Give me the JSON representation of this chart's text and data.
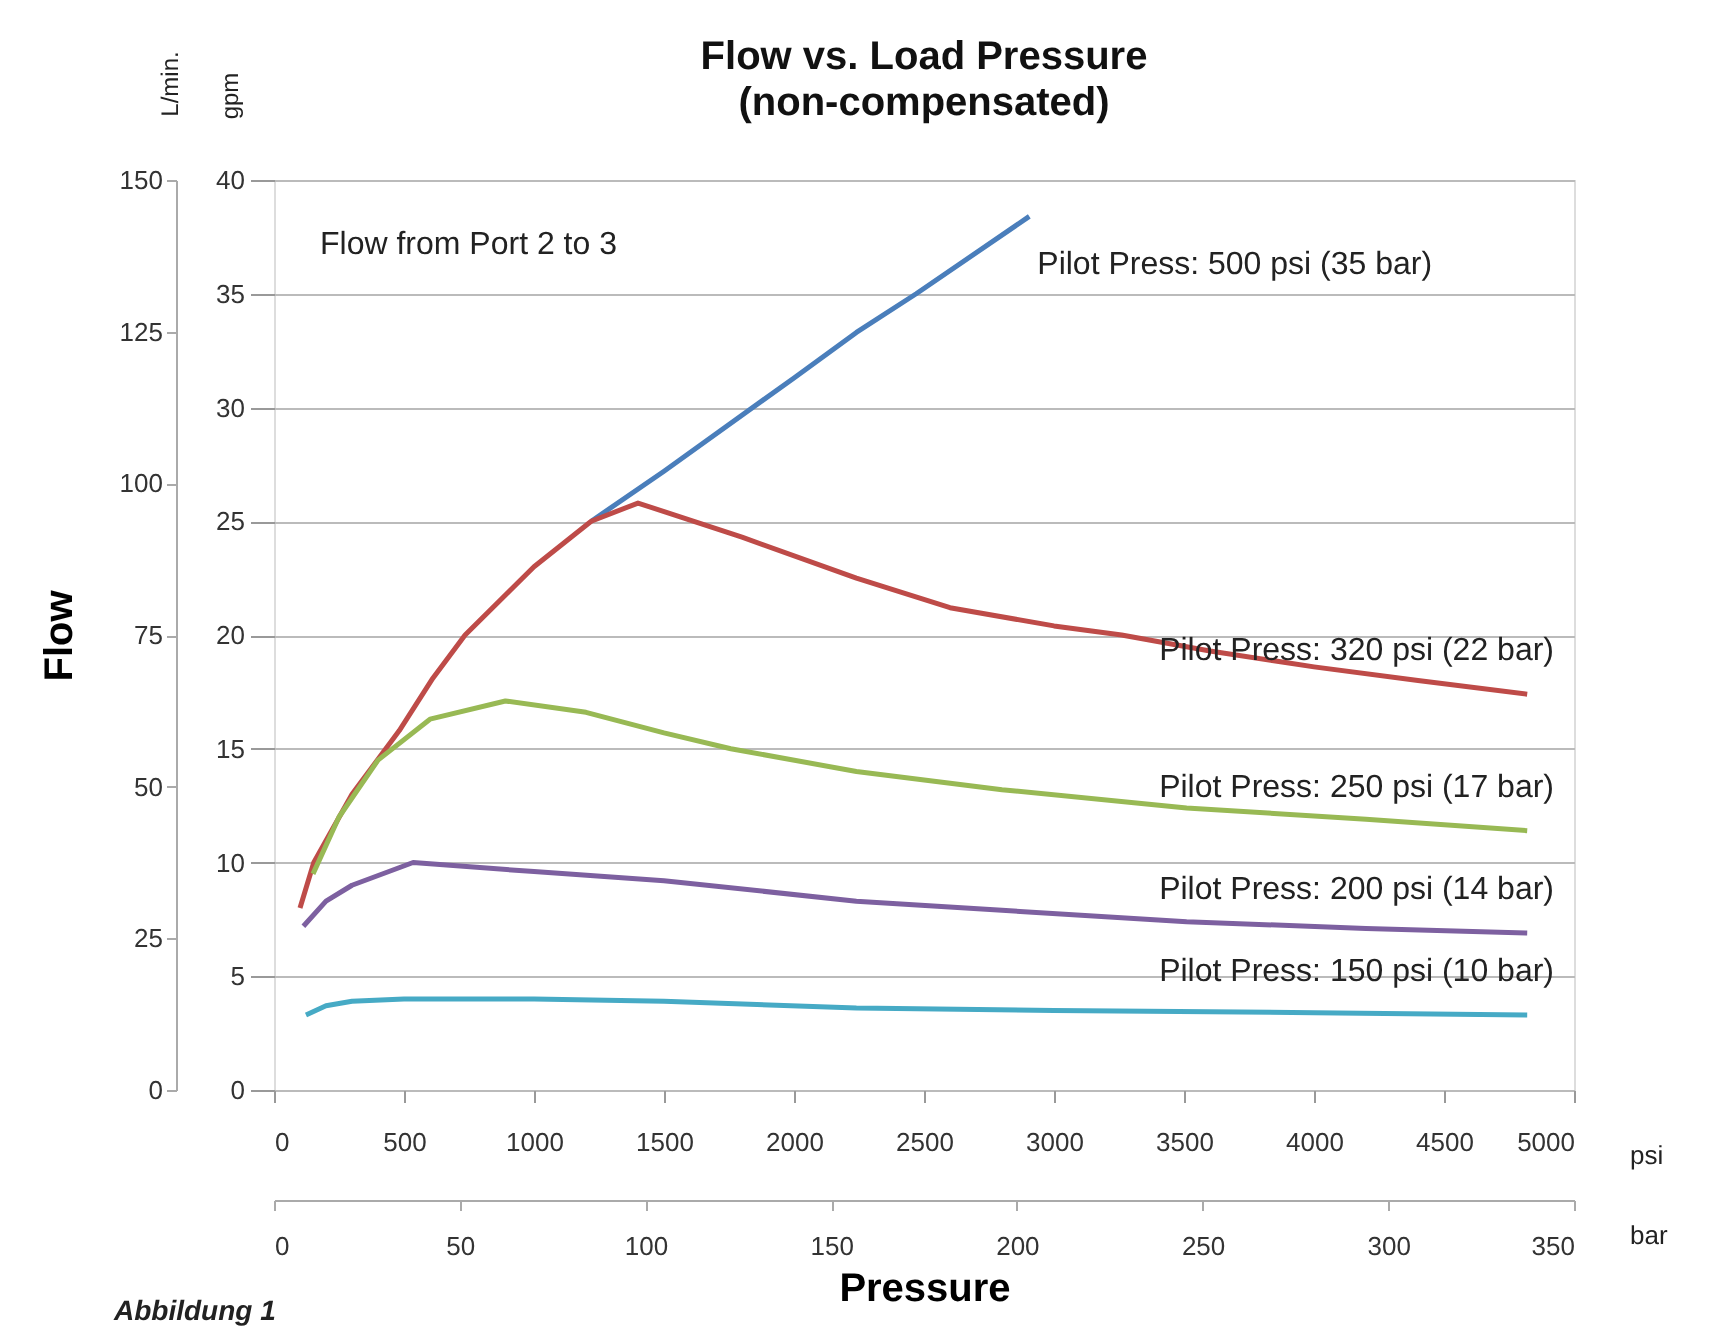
{
  "chart_data": {
    "type": "line",
    "title": "Flow vs. Load Pressure",
    "subtitle": "(non-compensated)",
    "xlabel": "Pressure",
    "y2label": "Flow",
    "annotations": [
      "Flow from Port 2 to 3",
      "Abbildung 1",
      "L/min.",
      "gpm",
      "psi",
      "bar"
    ],
    "xlim": [
      0,
      5000
    ],
    "xticks": [
      0,
      500,
      1000,
      1500,
      2000,
      2500,
      3000,
      3500,
      4000,
      4500,
      5000
    ],
    "ylim": [
      0,
      40
    ],
    "yticks": [
      0,
      5,
      10,
      15,
      20,
      25,
      30,
      35,
      40
    ],
    "y2lim": [
      0,
      150
    ],
    "y2ticks": [
      0,
      25,
      50,
      75,
      100,
      125,
      150
    ],
    "x2lim": [
      0,
      350
    ],
    "x2ticks": [
      0,
      50,
      100,
      150,
      200,
      250,
      300,
      350
    ],
    "grid": "y",
    "legend": false,
    "marker": "none",
    "line_style": "solid",
    "series": [
      {
        "name": "Pilot Press: 500 psi (35 bar)",
        "color": "#4a7ebb",
        "x": [
          1220,
          1500,
          2000,
          2240,
          2470,
          2905
        ],
        "values": [
          25.0,
          27.2,
          31.3,
          33.3,
          35.0,
          38.4
        ]
      },
      {
        "name": "Pilot Press: 320 psi (22 bar)",
        "color": "#be4b48",
        "x": [
          100,
          153,
          300,
          482,
          611,
          735,
          1000,
          1220,
          1400,
          1800,
          2240,
          2600,
          3000,
          3260,
          3600,
          4000,
          4400,
          4820
        ],
        "values": [
          8.0,
          10.0,
          13.0,
          15.8,
          18.1,
          20.0,
          23.0,
          25.0,
          25.8,
          24.3,
          22.5,
          21.2,
          20.4,
          20.0,
          19.3,
          18.6,
          18.0,
          17.4
        ]
      },
      {
        "name": "Pilot Press: 250 psi (17 bar)",
        "color": "#98b954",
        "x": [
          150,
          250,
          400,
          600,
          890,
          1200,
          1500,
          1757,
          2240,
          2800,
          3510,
          4200,
          4820
        ],
        "values": [
          9.5,
          12.0,
          14.5,
          16.3,
          17.1,
          16.6,
          15.7,
          15.0,
          14.0,
          13.2,
          12.4,
          11.9,
          11.4
        ]
      },
      {
        "name": "Pilot Press: 200 psi (14 bar)",
        "color": "#7d60a0",
        "x": [
          113,
          200,
          300,
          535,
          1000,
          1500,
          2240,
          2800,
          3510,
          4200,
          4820
        ],
        "values": [
          7.2,
          8.3,
          9.0,
          10.0,
          9.6,
          9.2,
          8.3,
          7.9,
          7.4,
          7.1,
          6.9
        ]
      },
      {
        "name": "Pilot Press: 150 psi (10 bar)",
        "color": "#46aac5",
        "x": [
          123,
          200,
          300,
          500,
          1000,
          1500,
          2240,
          3000,
          4000,
          4820
        ],
        "values": [
          3.3,
          3.7,
          3.9,
          4.0,
          4.0,
          3.9,
          3.6,
          3.5,
          3.4,
          3.3
        ]
      }
    ]
  }
}
